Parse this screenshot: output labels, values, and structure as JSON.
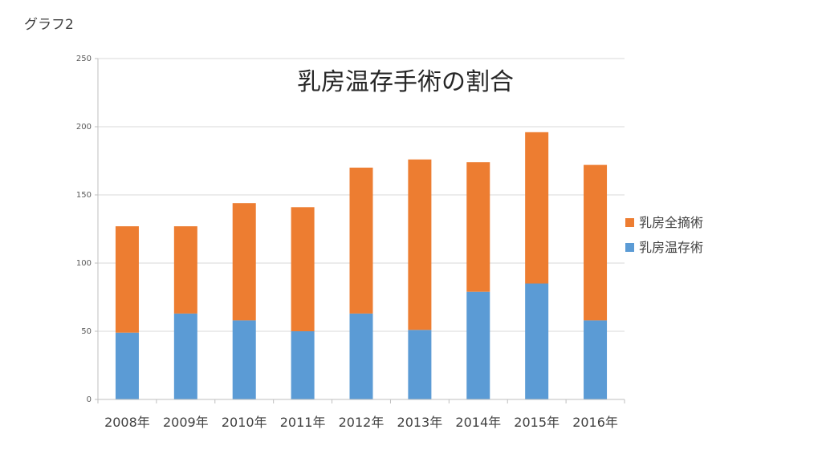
{
  "slide": {
    "label": "グラフ2"
  },
  "chart_data": {
    "type": "bar",
    "stacked": true,
    "title": "乳房温存手術の割合",
    "categories": [
      "2008年",
      "2009年",
      "2010年",
      "2011年",
      "2012年",
      "2013年",
      "2014年",
      "2015年",
      "2016年"
    ],
    "series": [
      {
        "name": "乳房温存術",
        "color": "#5b9bd5",
        "values": [
          49,
          63,
          58,
          50,
          63,
          51,
          79,
          85,
          58
        ]
      },
      {
        "name": "乳房全摘術",
        "color": "#ed7d31",
        "values": [
          78,
          64,
          86,
          91,
          107,
          125,
          95,
          111,
          114
        ]
      }
    ],
    "ylim": [
      0,
      250
    ],
    "yticks": [
      0,
      50,
      100,
      150,
      200,
      250
    ],
    "grid": true,
    "legend": {
      "position": "right",
      "order": [
        "乳房全摘術",
        "乳房温存術"
      ]
    },
    "xlabel": "",
    "ylabel": ""
  }
}
